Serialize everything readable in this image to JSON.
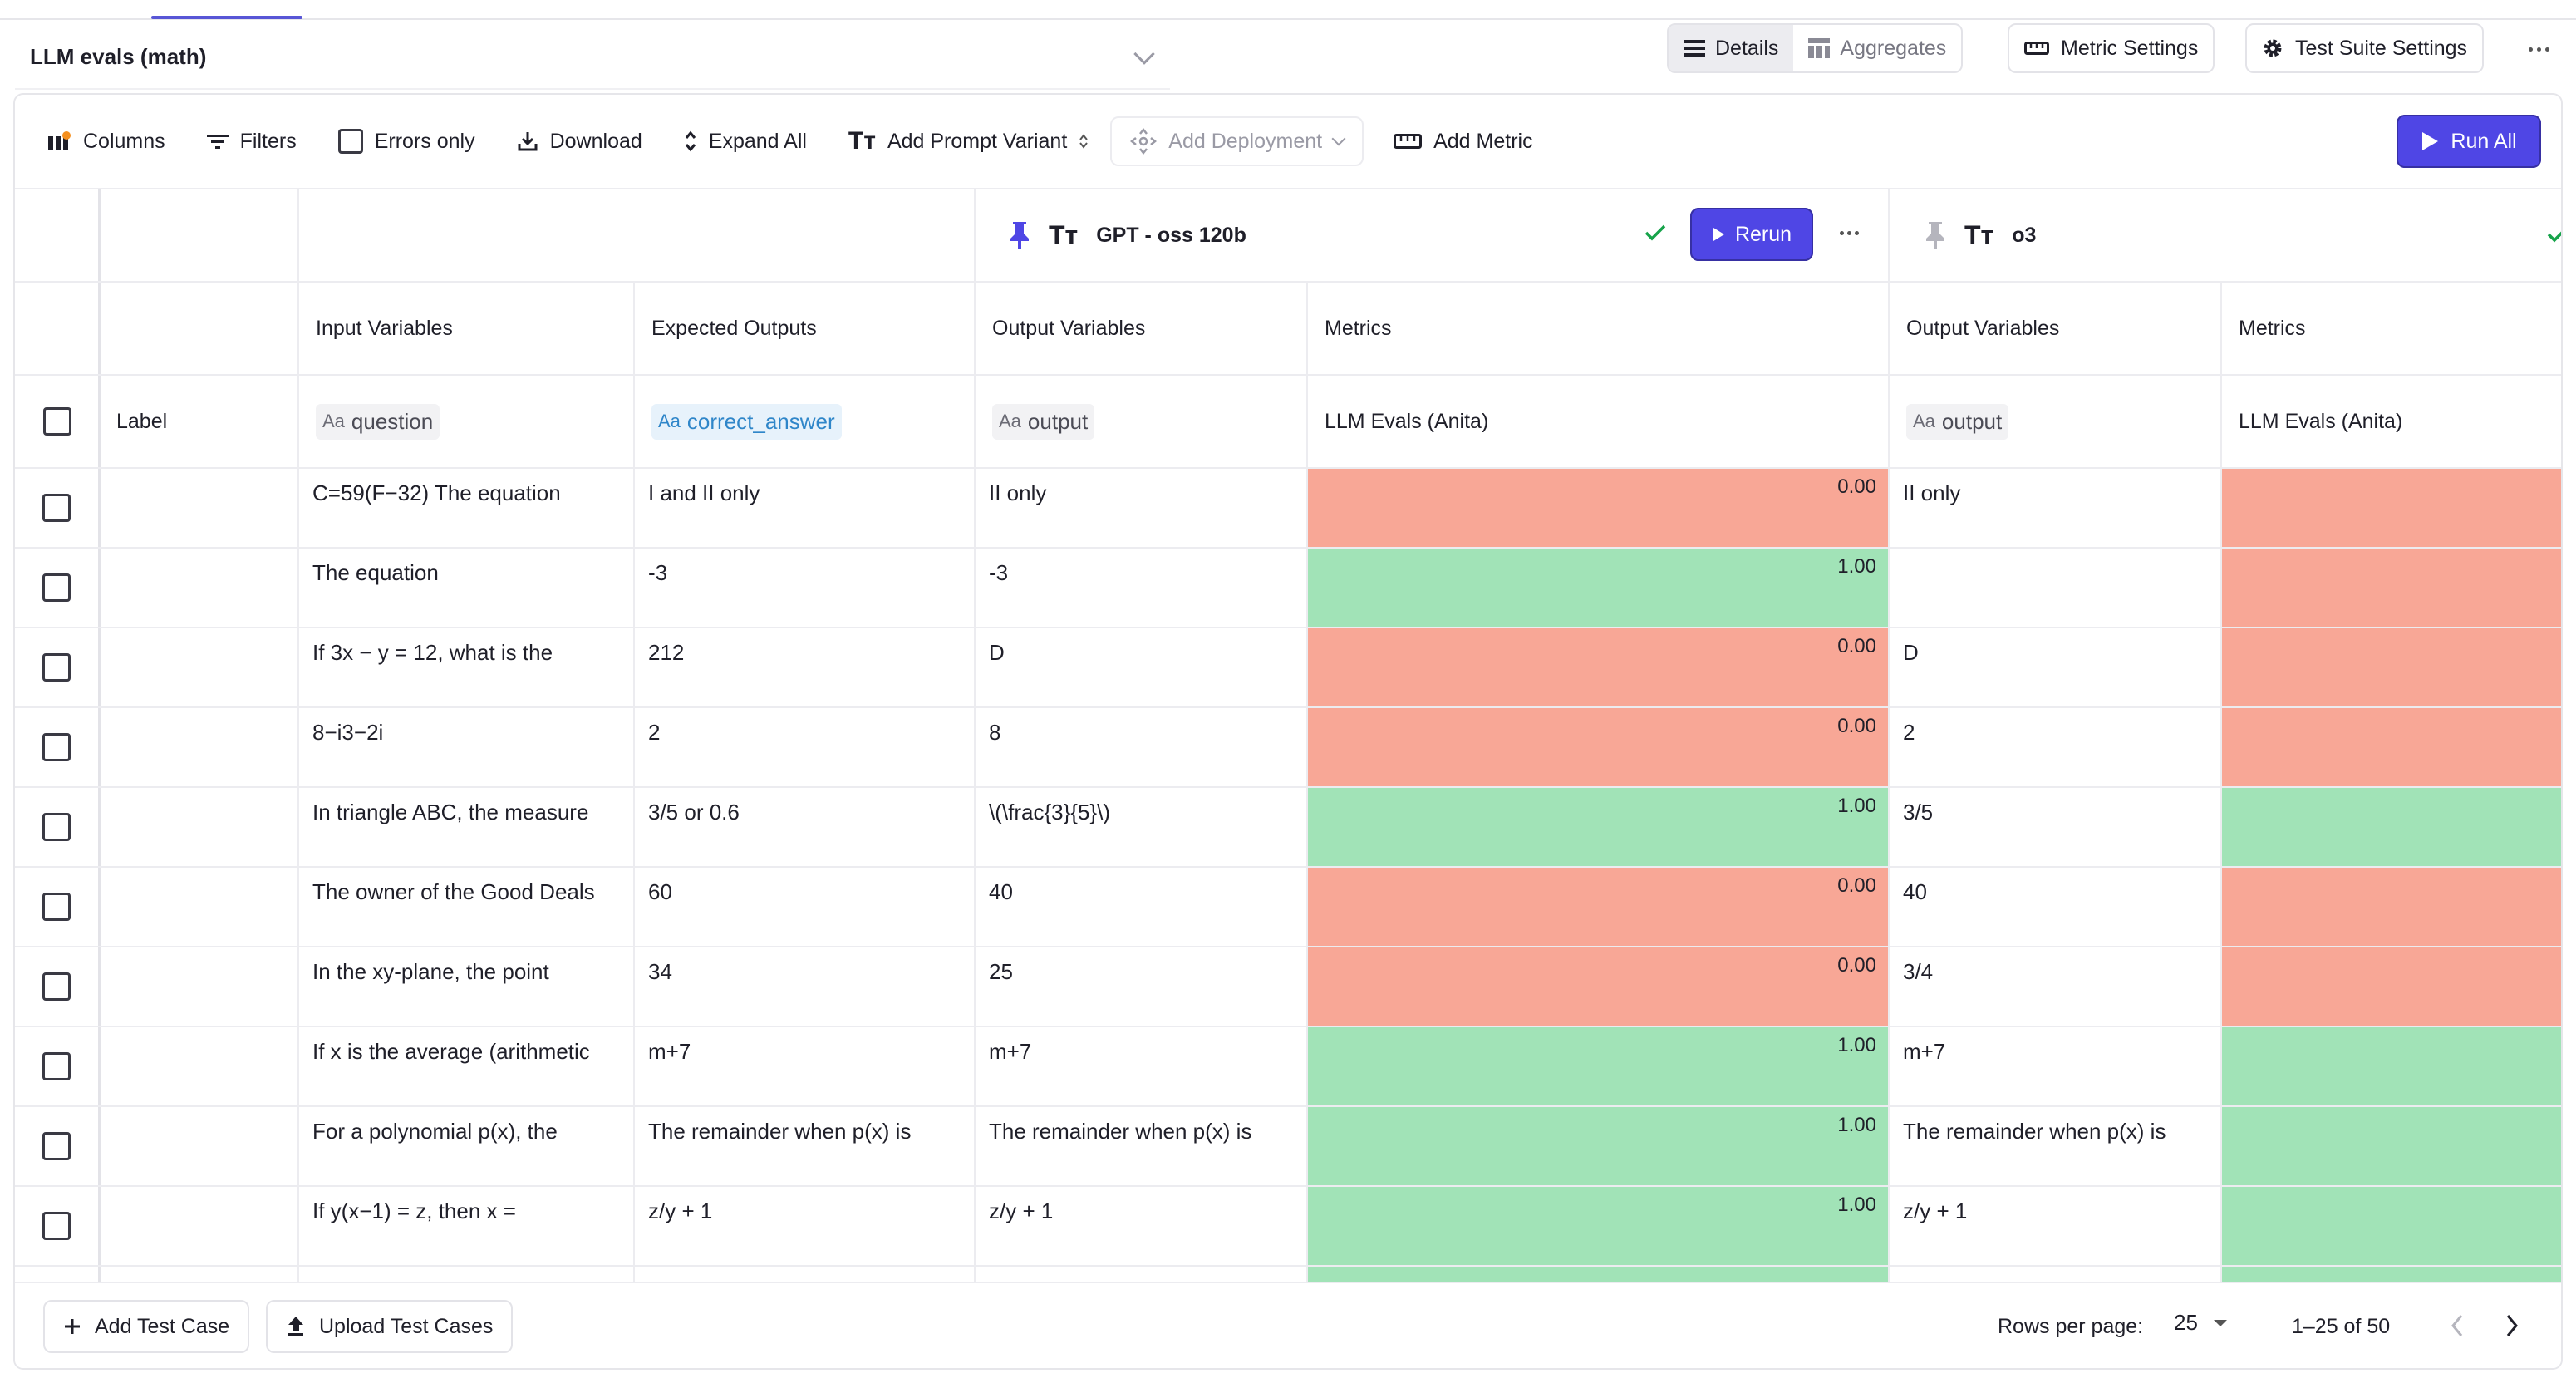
{
  "header": {
    "suite_name": "LLM evals (math)",
    "view_toggle": {
      "details": "Details",
      "aggregates": "Aggregates",
      "selected": "Details"
    },
    "metric_settings": "Metric Settings",
    "test_suite_settings": "Test Suite Settings"
  },
  "toolbar": {
    "columns": "Columns",
    "filters": "Filters",
    "errors_only": "Errors only",
    "download": "Download",
    "expand_all": "Expand All",
    "add_prompt_variant": "Add Prompt Variant",
    "add_deployment": "Add Deployment",
    "add_metric": "Add Metric",
    "run_all": "Run All"
  },
  "variants": [
    {
      "name": "GPT - oss 120b",
      "rerun": "Rerun",
      "pinned": true
    },
    {
      "name": "o3",
      "pinned": false
    }
  ],
  "columns": {
    "input_variables": "Input Variables",
    "expected_outputs": "Expected Outputs",
    "output_variables": "Output Variables",
    "metrics": "Metrics",
    "label": "Label",
    "question_chip": "question",
    "answer_chip": "correct_answer",
    "output_chip": "output",
    "metric_name": "LLM Evals (Anita)",
    "chip_prefix": "Aa"
  },
  "rows": [
    {
      "question": "C=59(F−32) The equation",
      "expected": "I and II only",
      "out1": "II only",
      "score1": "0.00",
      "pass1": false,
      "out2": "II only",
      "pass2": false
    },
    {
      "question": "The equation",
      "expected": "-3",
      "out1": "-3",
      "score1": "1.00",
      "pass1": true,
      "out2": "",
      "pass2": false
    },
    {
      "question": "If 3x − y = 12, what is the",
      "expected": "212",
      "out1": "D",
      "score1": "0.00",
      "pass1": false,
      "out2": "D",
      "pass2": false
    },
    {
      "question": "8−i3−2i",
      "expected": "2",
      "out1": "8",
      "score1": "0.00",
      "pass1": false,
      "out2": "2",
      "pass2": false
    },
    {
      "question": "In triangle ABC, the measure",
      "expected": "3/5 or 0.6",
      "out1": "\\(\\frac{3}{5}\\)",
      "score1": "1.00",
      "pass1": true,
      "out2": "3/5",
      "pass2": true
    },
    {
      "question": "The owner of the Good Deals",
      "expected": "60",
      "out1": "40",
      "score1": "0.00",
      "pass1": false,
      "out2": "40",
      "pass2": false
    },
    {
      "question": "In the xy-plane, the point",
      "expected": "34",
      "out1": "25",
      "score1": "0.00",
      "pass1": false,
      "out2": "3/4",
      "pass2": false
    },
    {
      "question": "If x is the average (arithmetic",
      "expected": "m+7",
      "out1": "m+7",
      "score1": "1.00",
      "pass1": true,
      "out2": "m+7",
      "pass2": true
    },
    {
      "question": "For a polynomial p(x), the",
      "expected": "The remainder when p(x) is",
      "out1": "The remainder when p(x) is",
      "score1": "1.00",
      "pass1": true,
      "out2": "The remainder when p(x) is",
      "pass2": true
    },
    {
      "question": "If y(x−1) = z, then x =",
      "expected": "z/y + 1",
      "out1": "z/y + 1",
      "score1": "1.00",
      "pass1": true,
      "out2": "z/y + 1",
      "pass2": true
    },
    {
      "question": "",
      "expected": "",
      "out1": "",
      "score1": "",
      "pass1": true,
      "out2": "",
      "pass2": true
    }
  ],
  "footer": {
    "add_test_case": "Add Test Case",
    "upload_test_cases": "Upload Test Cases",
    "rows_per_page_label": "Rows per page:",
    "rows_per_page": "25",
    "range": "1–25 of 50"
  },
  "colors": {
    "accent": "#4f46e5",
    "fail": "#f8a796",
    "pass": "#a1e3b7",
    "check": "#16a34a"
  }
}
